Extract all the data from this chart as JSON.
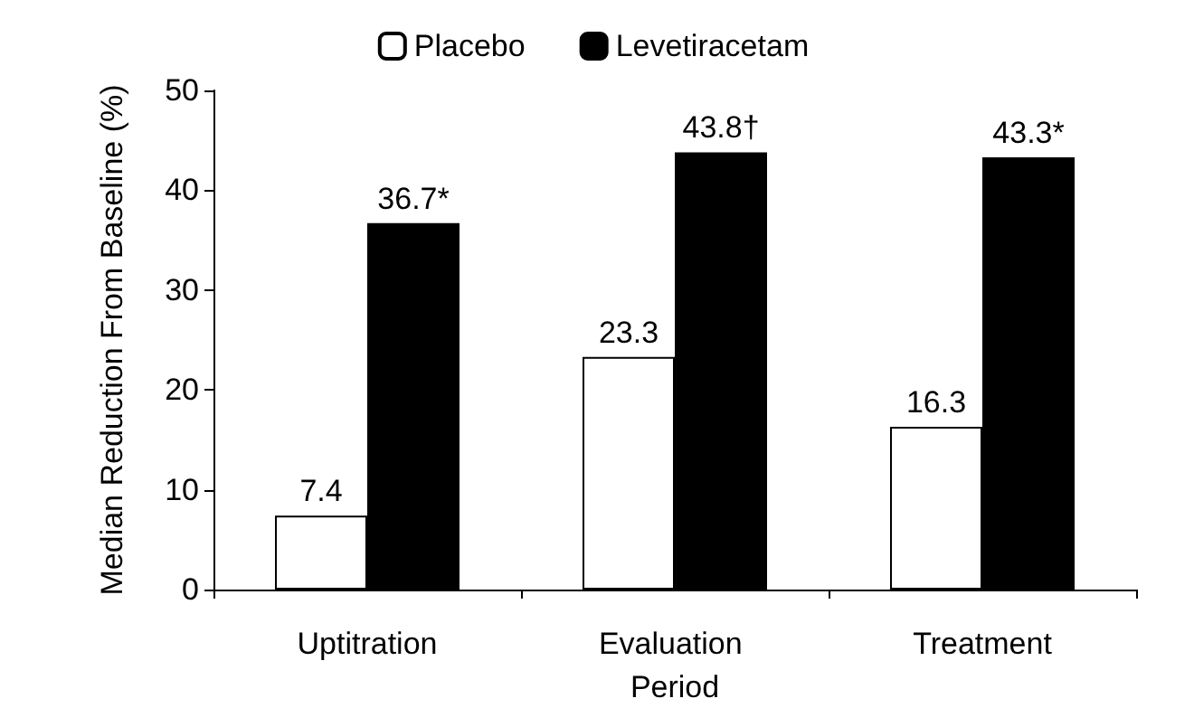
{
  "chart_data": {
    "type": "bar",
    "ylabel": "Median Reduction From Baseline (%)",
    "categories": [
      "Uptitration",
      "Evaluation Period",
      "Treatment"
    ],
    "series": [
      {
        "name": "Placebo",
        "color": "#ffffff",
        "values": [
          7.4,
          23.3,
          16.3
        ],
        "value_labels": [
          "7.4",
          "23.3",
          "16.3"
        ]
      },
      {
        "name": "Levetiracetam",
        "color": "#000000",
        "values": [
          36.7,
          43.8,
          43.3
        ],
        "value_labels": [
          "36.7*",
          "43.8†",
          "43.3*"
        ]
      }
    ],
    "ylim": [
      0,
      50
    ],
    "yticks": [
      0,
      10,
      20,
      30,
      40,
      50
    ],
    "grid": false,
    "legend": "top"
  }
}
